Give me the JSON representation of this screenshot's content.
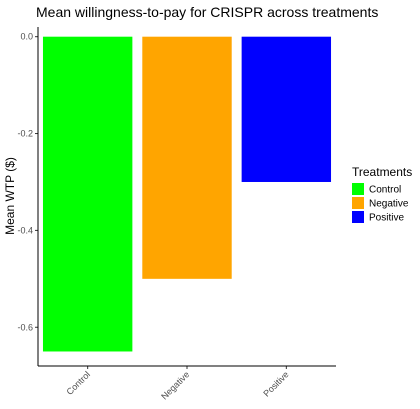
{
  "chart_data": {
    "type": "bar",
    "title": "Mean willingness-to-pay for CRISPR across treatments",
    "xlabel": "",
    "ylabel": "Mean WTP ($)",
    "categories": [
      "Control",
      "Negative",
      "Positive"
    ],
    "values": [
      -0.65,
      -0.5,
      -0.3
    ],
    "colors": [
      "#00ff00",
      "#ffa500",
      "#0000ff"
    ],
    "ylim": [
      -0.68,
      0.02
    ],
    "yticks": [
      0.0,
      -0.2,
      -0.4,
      -0.6
    ],
    "ytick_labels": [
      "0.0",
      "-0.2",
      "-0.4",
      "-0.6"
    ],
    "grid": false,
    "legend": {
      "title": "Treatments",
      "placement": "right",
      "entries": [
        "Control",
        "Negative",
        "Positive"
      ]
    }
  }
}
